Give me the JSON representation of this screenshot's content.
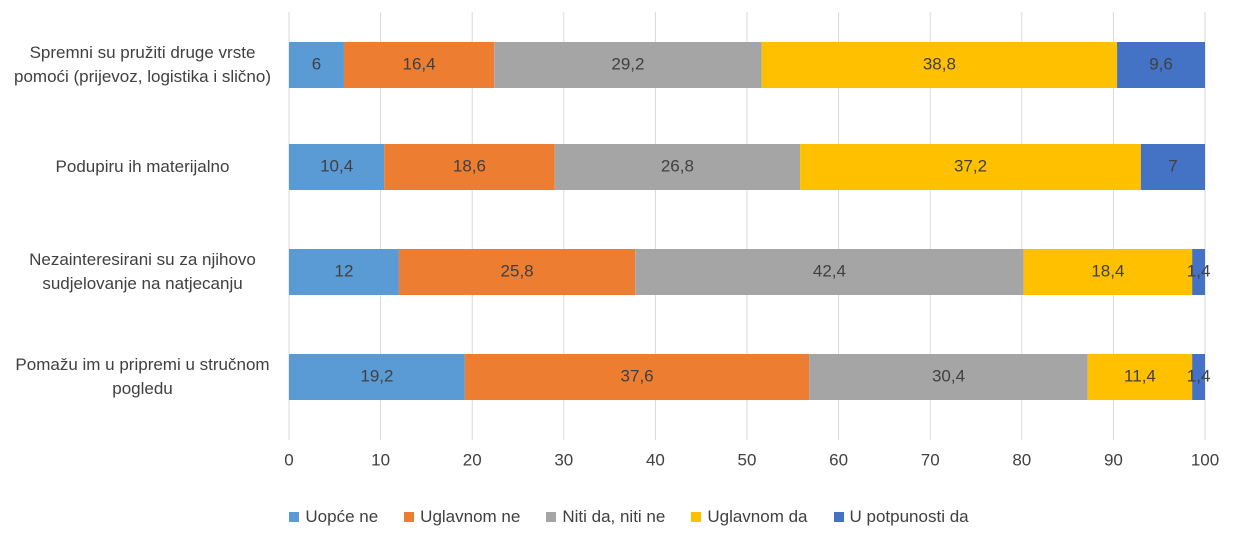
{
  "chart_data": {
    "type": "stacked-bar-horizontal",
    "categories": [
      "Spremni su pružiti druge vrste pomoći (prijevoz, logistika i slično)",
      "Podupiru ih materijalno",
      "Nezainteresirani su za njihovo sudjelovanje na natjecanju",
      "Pomažu im u pripremi u stručnom pogledu"
    ],
    "series": [
      {
        "name": "Uopće ne",
        "color": "#5b9bd5",
        "values": [
          6,
          10.4,
          12,
          19.2
        ],
        "value_labels": [
          "6",
          "10,4",
          "12",
          "19,2"
        ]
      },
      {
        "name": "Uglavnom ne",
        "color": "#ed7d31",
        "values": [
          16.4,
          18.6,
          25.8,
          37.6
        ],
        "value_labels": [
          "16,4",
          "18,6",
          "25,8",
          "37,6"
        ]
      },
      {
        "name": "Niti da, niti ne",
        "color": "#a5a5a5",
        "values": [
          29.2,
          26.8,
          42.4,
          30.4
        ],
        "value_labels": [
          "29,2",
          "26,8",
          "42,4",
          "30,4"
        ]
      },
      {
        "name": "Uglavnom da",
        "color": "#ffc000",
        "values": [
          38.8,
          37.2,
          18.4,
          11.4
        ],
        "value_labels": [
          "38,8",
          "37,2",
          "18,4",
          "11,4"
        ]
      },
      {
        "name": "U potpunosti da",
        "color": "#4472c4",
        "values": [
          9.6,
          7,
          1.4,
          1.4
        ],
        "value_labels": [
          "9,6",
          "7",
          "1,4",
          "1,4"
        ]
      }
    ],
    "xlim": [
      0,
      100
    ],
    "xticks": [
      0,
      10,
      20,
      30,
      40,
      50,
      60,
      70,
      80,
      90,
      100
    ],
    "grid": true,
    "legend": "bottom"
  }
}
